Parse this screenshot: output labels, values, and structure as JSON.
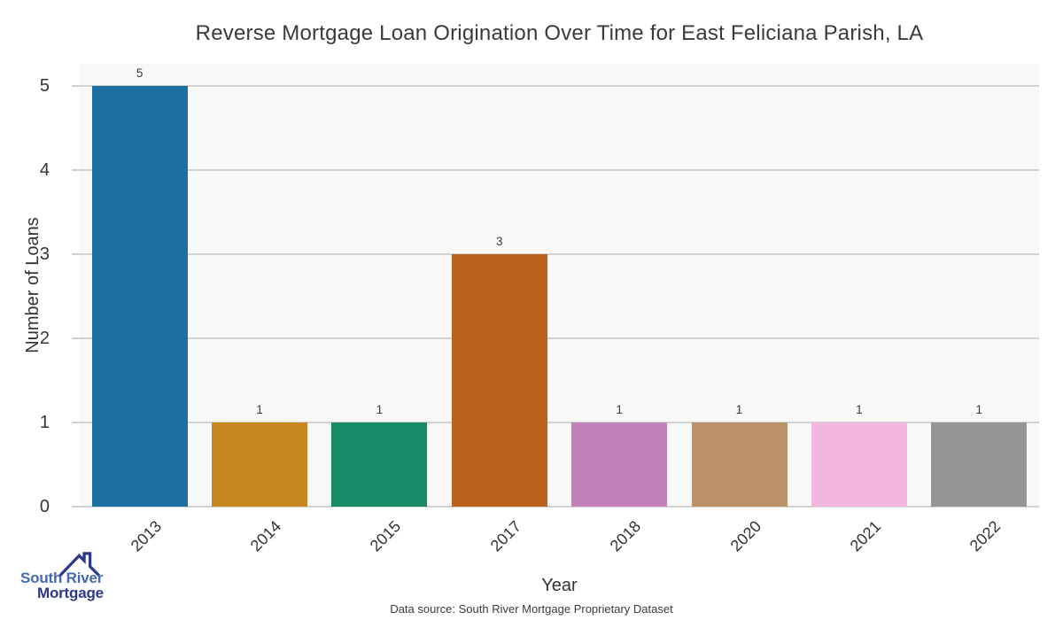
{
  "title": "Reverse Mortgage Loan Origination Over Time for East Feliciana Parish, LA",
  "x_axis": {
    "label": "Year"
  },
  "y_axis": {
    "label": "Number of Loans",
    "tick_labels": [
      "0",
      "1",
      "2",
      "3",
      "4",
      "5"
    ]
  },
  "footer": {
    "data_source": "Data source: South River Mortgage Proprietary Dataset"
  },
  "logo": {
    "icon": "house-roof-icon",
    "line1": "South River",
    "line2": "Mortgage",
    "line1_color": "#4668b0",
    "line2_color": "#2b3a8c"
  },
  "chart_data": {
    "type": "bar",
    "title": "Reverse Mortgage Loan Origination Over Time for East Feliciana Parish, LA",
    "xlabel": "Year",
    "ylabel": "Number of Loans",
    "categories": [
      "2013",
      "2014",
      "2015",
      "2017",
      "2018",
      "2020",
      "2021",
      "2022"
    ],
    "values": [
      5,
      1,
      1,
      3,
      1,
      1,
      1,
      1
    ],
    "bar_colors": [
      "#1d6fa0",
      "#c8871e",
      "#178a68",
      "#ba611c",
      "#c381bb",
      "#bb9268",
      "#f3b7de",
      "#959595"
    ],
    "value_labels": [
      "5",
      "1",
      "1",
      "3",
      "1",
      "1",
      "1",
      "1"
    ],
    "yticks": [
      0,
      1,
      2,
      3,
      4,
      5
    ],
    "ylim": [
      0,
      5.26
    ],
    "grid": true,
    "legend": false,
    "plot_background": "#f8f8f7",
    "gridline_color": "#d2d2d2"
  }
}
